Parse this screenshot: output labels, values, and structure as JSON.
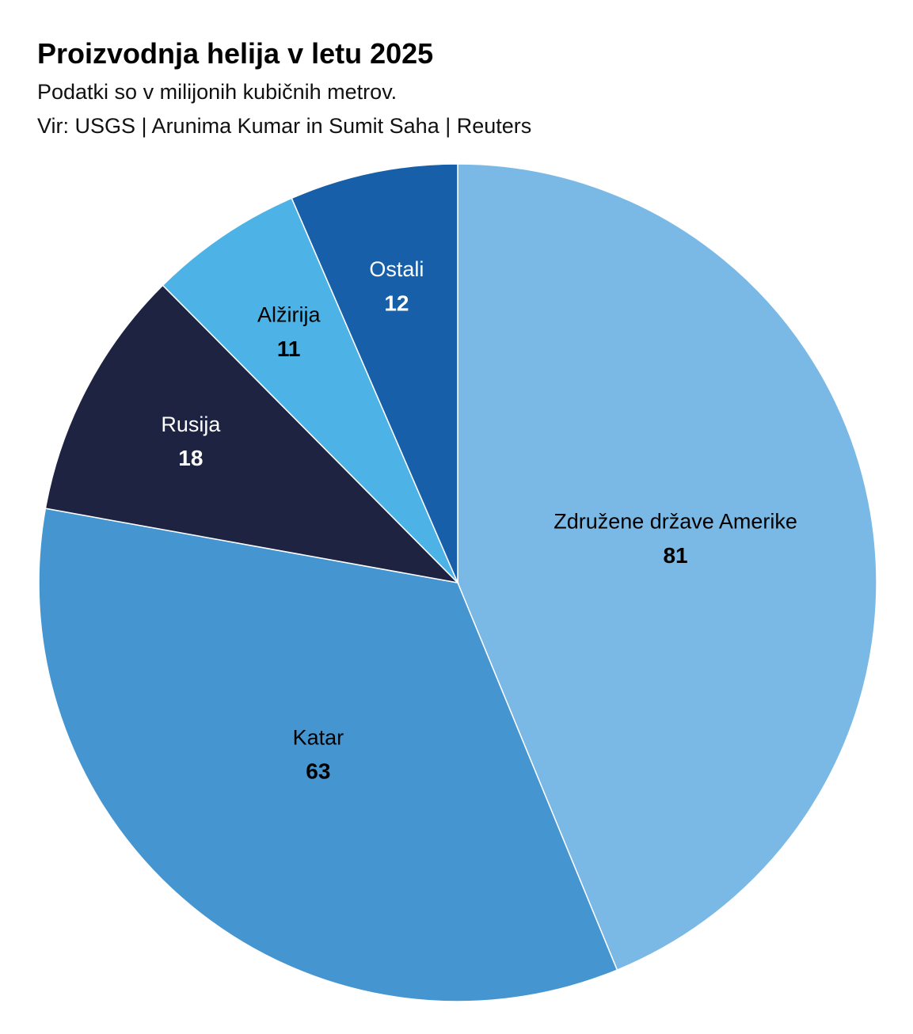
{
  "chart_data": {
    "type": "pie",
    "title": "Proizvodnja helija v letu 2025",
    "subtitle": "Podatki so v milijonih kubičnih metrov.",
    "source": "Vir: USGS | Arunima Kumar in Sumit Saha | Reuters",
    "categories": [
      "Združene države Amerike",
      "Katar",
      "Rusija",
      "Alžirija",
      "Ostali"
    ],
    "values": [
      81,
      63,
      18,
      11,
      12
    ],
    "colors": [
      "#7ab8e6",
      "#4595d1",
      "#1d2341",
      "#4db3e6",
      "#175fa8"
    ]
  }
}
